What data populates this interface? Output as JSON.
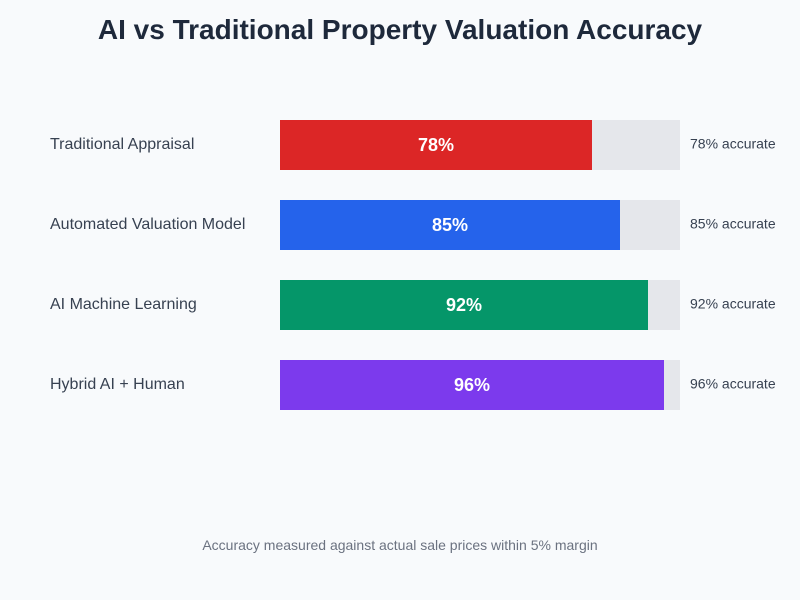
{
  "chart_data": {
    "type": "bar",
    "orientation": "horizontal",
    "title": "AI vs Traditional Property Valuation Accuracy",
    "categories": [
      "Traditional Appraisal",
      "Automated Valuation Model",
      "AI Machine Learning",
      "Hybrid AI + Human"
    ],
    "values": [
      78,
      85,
      92,
      96
    ],
    "bar_labels": [
      "78%",
      "85%",
      "92%",
      "96%"
    ],
    "side_labels": [
      "78% accurate",
      "85% accurate",
      "92% accurate",
      "96% accurate"
    ],
    "colors": [
      "#dc2626",
      "#2563eb",
      "#059669",
      "#7c3aed"
    ],
    "track_color": "#e5e7eb",
    "xlim": [
      0,
      100
    ],
    "xlabel": "",
    "ylabel": "",
    "grid": false,
    "legend": "none",
    "footnote": "Accuracy measured against actual sale prices within 5% margin"
  }
}
